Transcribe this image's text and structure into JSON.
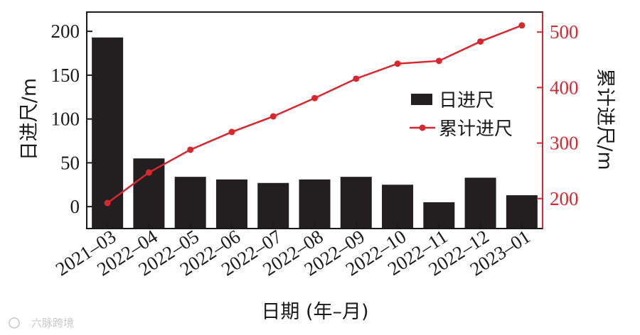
{
  "chart_data": {
    "type": "bar",
    "categories": [
      "2021–03",
      "2022–04",
      "2022–05",
      "2022–06",
      "2022–07",
      "2022–08",
      "2022–09",
      "2022–10",
      "2022–11",
      "2022–12",
      "2023–01"
    ],
    "series": [
      {
        "name": "日进尺",
        "type": "bar",
        "axis": "left",
        "color": "#231f20",
        "values": [
          193,
          55,
          34,
          31,
          27,
          31,
          34,
          25,
          5,
          33,
          13
        ]
      },
      {
        "name": "累计进尺",
        "type": "line",
        "axis": "right",
        "color": "#d9272e",
        "values": [
          192,
          247,
          288,
          320,
          348,
          381,
          416,
          443,
          448,
          483,
          512
        ]
      }
    ],
    "xlabel": "日期 (年–月)",
    "ylabel": "日进尺/m",
    "ylabel_right": "累计进尺/m",
    "ylim": [
      -25,
      222
    ],
    "ylim_right": [
      146,
      536
    ],
    "yticks": [
      0,
      50,
      100,
      150,
      200
    ],
    "yticks_right": [
      200,
      300,
      400,
      500
    ],
    "grid": false,
    "legend_position": "right-middle"
  },
  "watermark": {
    "text": "六脉跨境"
  }
}
